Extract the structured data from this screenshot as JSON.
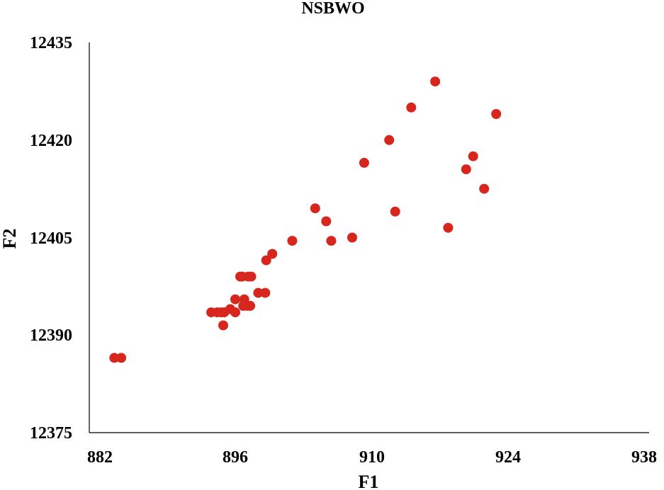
{
  "chart_data": {
    "type": "scatter",
    "title": "NSBWO",
    "xlabel": "F1",
    "ylabel": "F2",
    "xlim": [
      882,
      938
    ],
    "ylim": [
      12375,
      12435
    ],
    "xticks": [
      "882",
      "896",
      "910",
      "924",
      "938"
    ],
    "yticks": [
      "12375",
      "12390",
      "12405",
      "12420",
      "12435"
    ],
    "grid": false,
    "legend": "none",
    "marker_color": "#d7261e",
    "series": [
      {
        "points": [
          [
            884.5,
            12386.5
          ],
          [
            885.2,
            12386.5
          ],
          [
            894.2,
            12393.5
          ],
          [
            894.8,
            12393.5
          ],
          [
            895.2,
            12393.5
          ],
          [
            895.5,
            12393.5
          ],
          [
            895.4,
            12391.5
          ],
          [
            896.1,
            12394.0
          ],
          [
            896.6,
            12393.5
          ],
          [
            896.6,
            12395.5
          ],
          [
            897.1,
            12399.0
          ],
          [
            897.3,
            12399.0
          ],
          [
            897.4,
            12394.5
          ],
          [
            897.5,
            12395.5
          ],
          [
            897.8,
            12394.5
          ],
          [
            897.9,
            12399.0
          ],
          [
            898.2,
            12399.0
          ],
          [
            898.1,
            12394.5
          ],
          [
            898.9,
            12396.5
          ],
          [
            899.6,
            12396.5
          ],
          [
            899.7,
            12401.5
          ],
          [
            900.3,
            12402.5
          ],
          [
            902.3,
            12404.5
          ],
          [
            904.6,
            12409.5
          ],
          [
            905.7,
            12407.5
          ],
          [
            906.2,
            12404.5
          ],
          [
            908.3,
            12405.0
          ],
          [
            909.5,
            12416.5
          ],
          [
            912.0,
            12420.0
          ],
          [
            912.6,
            12409.0
          ],
          [
            914.2,
            12425.0
          ],
          [
            916.6,
            12429.0
          ],
          [
            917.9,
            12406.5
          ],
          [
            919.7,
            12415.5
          ],
          [
            920.4,
            12417.5
          ],
          [
            921.5,
            12412.5
          ],
          [
            922.7,
            12424.0
          ]
        ]
      }
    ]
  }
}
